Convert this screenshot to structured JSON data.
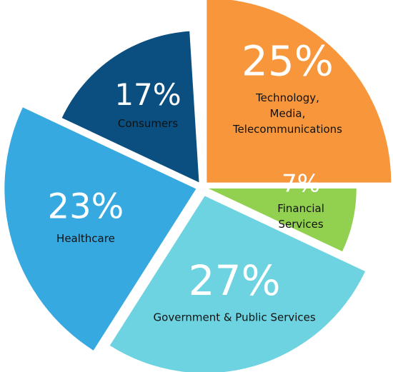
{
  "chart_data": {
    "type": "pie",
    "categories": [
      "Technology, Media, Telecommunications",
      "Financial Services",
      "Government & Public Services",
      "Healthcare",
      "Consumers"
    ],
    "values": [
      25,
      7,
      27,
      23,
      17
    ],
    "value_labels": [
      "25%",
      "7%",
      "27%",
      "23%",
      "17%"
    ],
    "colors": [
      "#f7963b",
      "#92d050",
      "#6dd3e0",
      "#36a9e1",
      "#0b4f80"
    ]
  }
}
